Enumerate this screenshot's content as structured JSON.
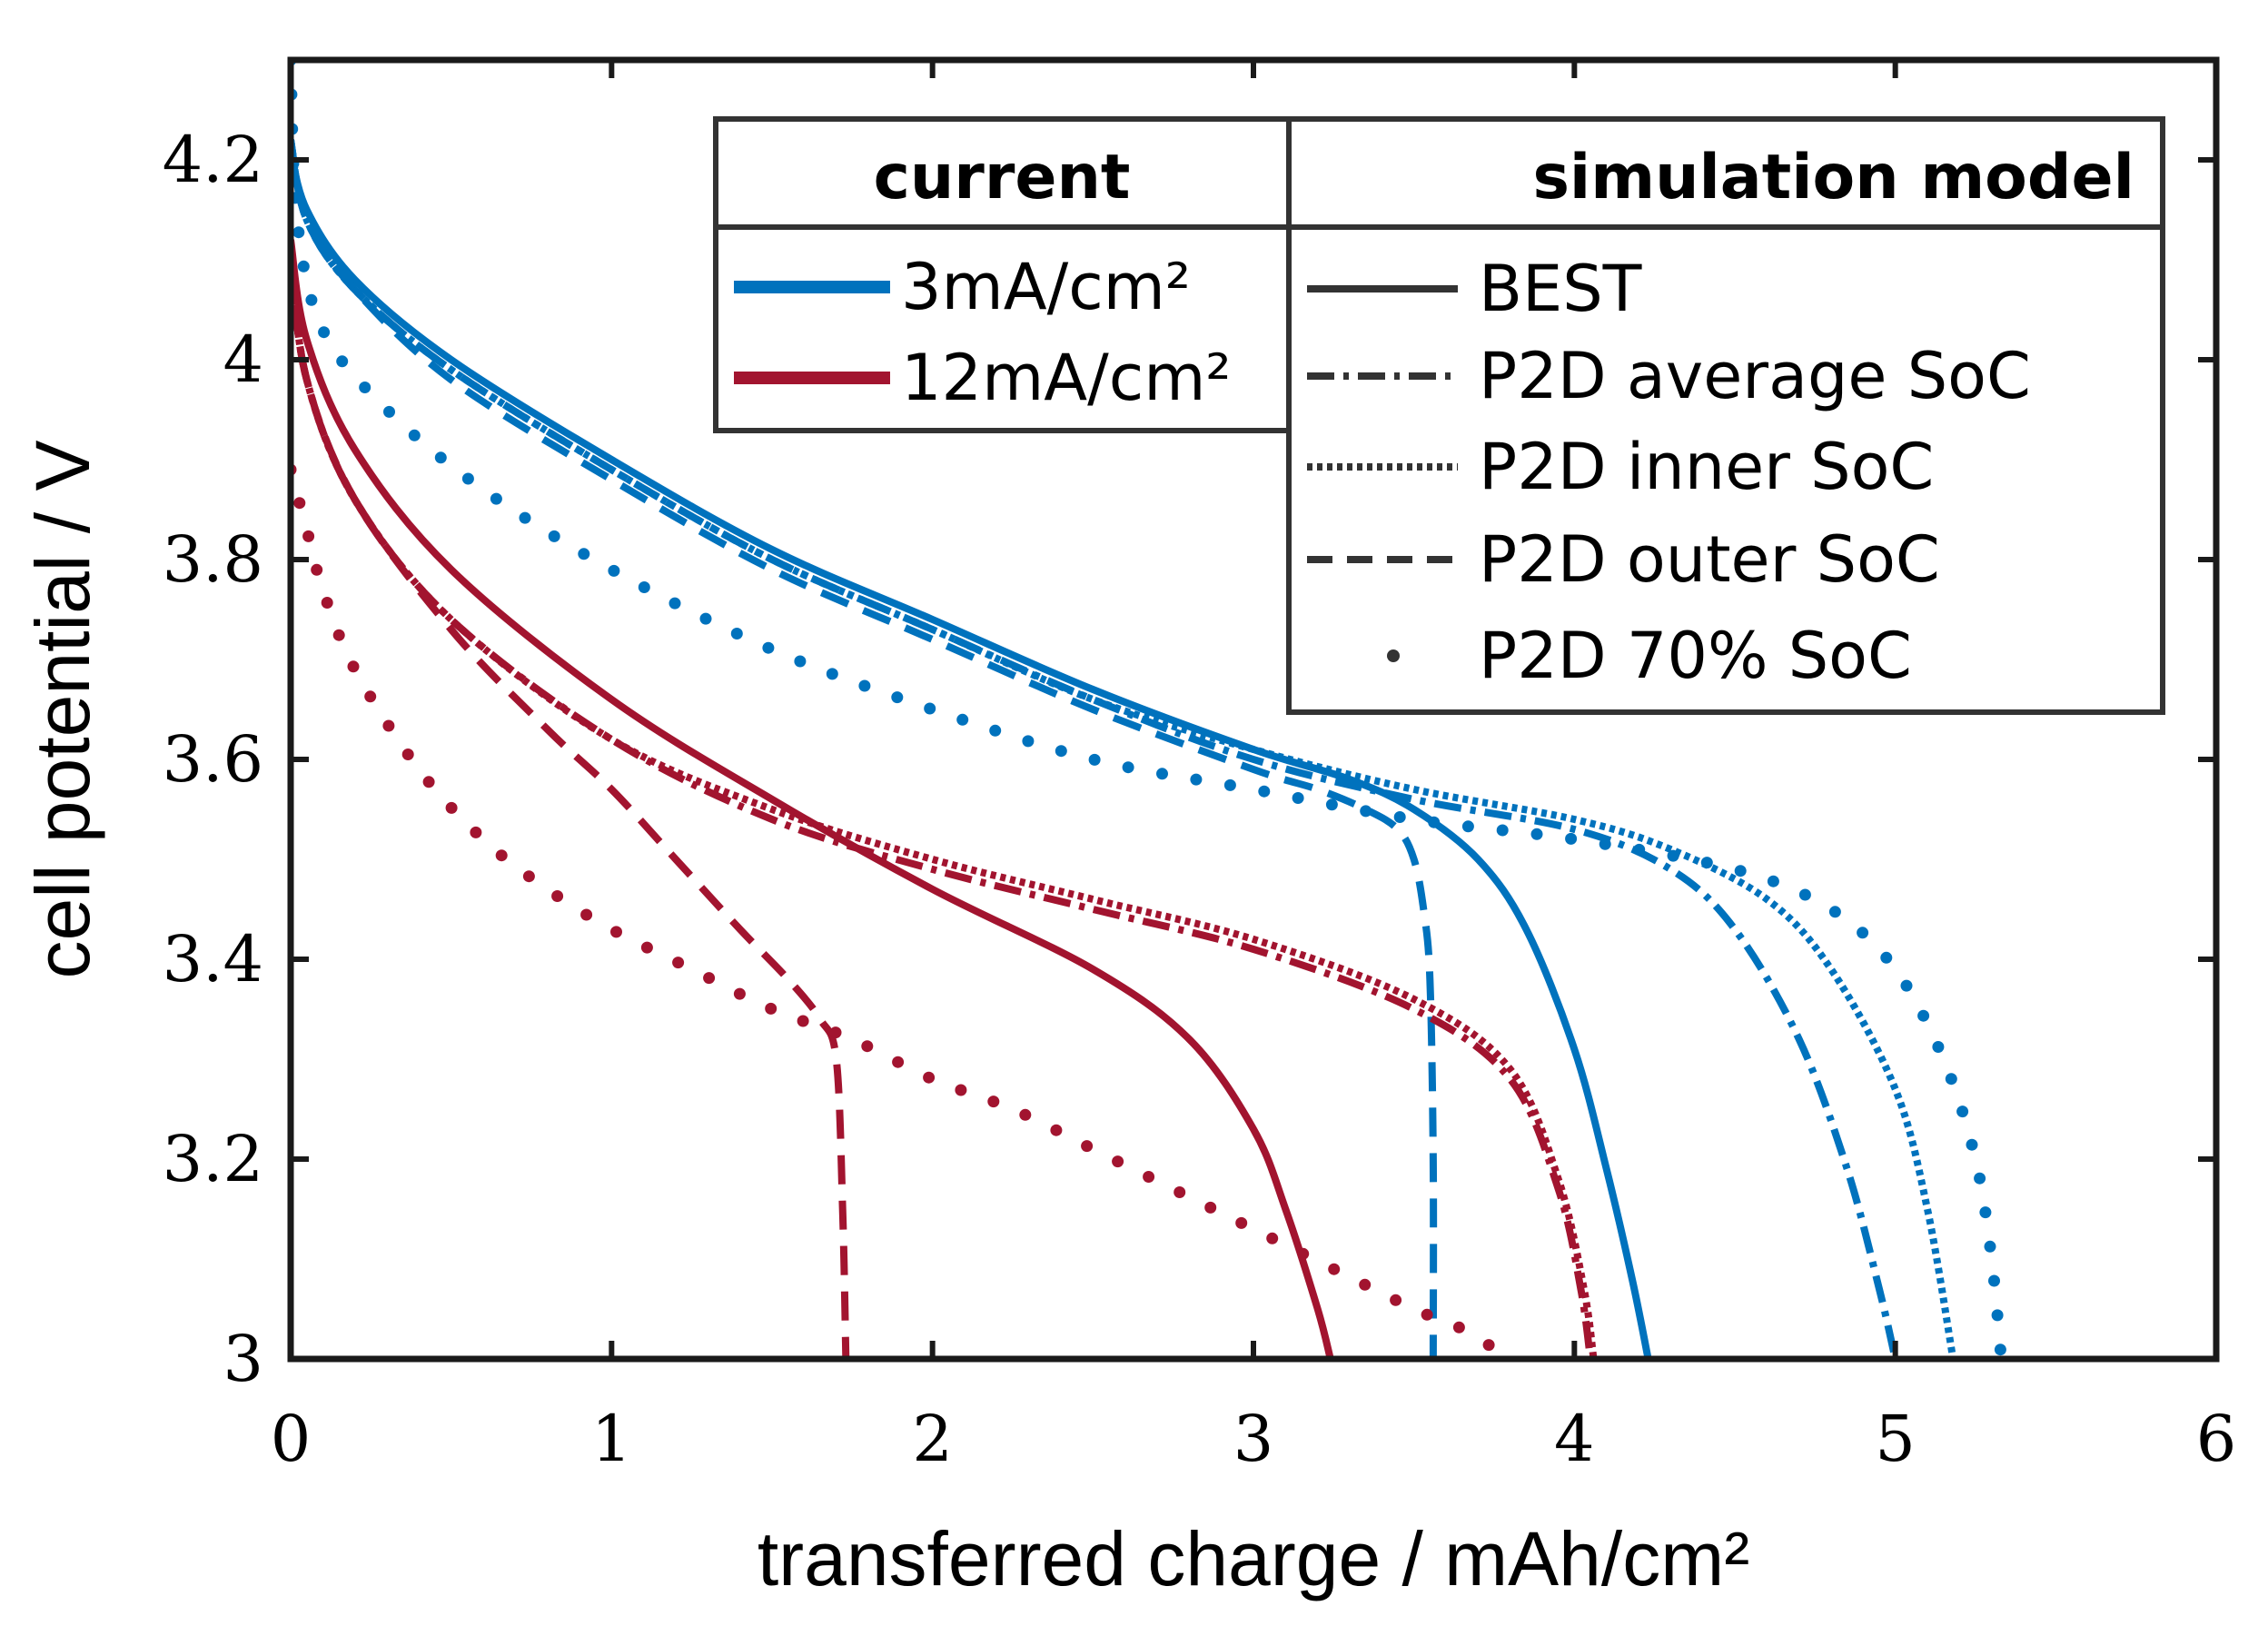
{
  "chart_data": {
    "type": "line",
    "title": "",
    "xlabel": "transferred charge / mAh/cm²",
    "ylabel": "cell potential / V",
    "xlim": [
      0,
      6
    ],
    "ylim": [
      3,
      4.3
    ],
    "x_ticks": [
      "0",
      "1",
      "2",
      "3",
      "4",
      "5",
      "6"
    ],
    "y_ticks": [
      "3",
      "3.2",
      "3.4",
      "3.6",
      "3.8",
      "4",
      "4.2"
    ],
    "grid": false,
    "colors": {
      "3mA": "#0072bd",
      "12mA": "#a2142f",
      "legend_line": "#333333"
    },
    "legend": {
      "placement": "top-right",
      "current_title": "current",
      "model_title": "simulation model",
      "current_entries": [
        {
          "label": "3mA/cm²",
          "color": "#0072bd"
        },
        {
          "label": "12mA/cm²",
          "color": "#a2142f"
        }
      ],
      "model_entries": [
        {
          "label": "BEST",
          "style": "solid"
        },
        {
          "label": "P2D average SoC",
          "style": "dashdot"
        },
        {
          "label": "P2D inner SoC",
          "style": "dotted"
        },
        {
          "label": "P2D outer SoC",
          "style": "dashed"
        },
        {
          "label": "P2D 70% SoC",
          "style": "sparse-dots"
        }
      ]
    },
    "series": [
      {
        "name": "BEST 3mA/cm²",
        "current": "3mA",
        "style": "solid",
        "x": [
          0,
          0.05,
          0.2,
          0.5,
          1.0,
          1.5,
          2.0,
          2.5,
          3.0,
          3.3,
          3.5,
          3.7,
          3.85,
          4.0,
          4.1,
          4.18,
          4.23
        ],
        "y": [
          4.21,
          4.15,
          4.08,
          4.0,
          3.9,
          3.81,
          3.74,
          3.67,
          3.61,
          3.58,
          3.55,
          3.5,
          3.43,
          3.31,
          3.19,
          3.08,
          3.0
        ]
      },
      {
        "name": "P2D average SoC 3mA/cm²",
        "current": "3mA",
        "style": "dashdot",
        "x": [
          0,
          0.05,
          0.2,
          0.5,
          1.0,
          1.5,
          2.0,
          2.5,
          3.0,
          3.5,
          4.0,
          4.3,
          4.5,
          4.7,
          4.85,
          4.95,
          5.0
        ],
        "y": [
          4.22,
          4.14,
          4.07,
          3.99,
          3.89,
          3.8,
          3.73,
          3.66,
          3.6,
          3.56,
          3.53,
          3.49,
          3.43,
          3.32,
          3.19,
          3.07,
          3.0
        ]
      },
      {
        "name": "P2D inner SoC 3mA/cm²",
        "current": "3mA",
        "style": "dotted",
        "x": [
          0,
          0.05,
          0.2,
          0.5,
          1.0,
          1.5,
          2.0,
          2.5,
          3.0,
          3.5,
          4.0,
          4.3,
          4.6,
          4.8,
          5.0,
          5.1,
          5.18
        ],
        "y": [
          4.22,
          4.14,
          4.07,
          3.99,
          3.89,
          3.8,
          3.73,
          3.66,
          3.61,
          3.57,
          3.54,
          3.51,
          3.46,
          3.39,
          3.27,
          3.15,
          3.0
        ]
      },
      {
        "name": "P2D outer SoC 3mA/cm²",
        "current": "3mA",
        "style": "dashed",
        "x": [
          0,
          0.05,
          0.2,
          0.5,
          1.0,
          1.5,
          2.0,
          2.5,
          3.0,
          3.2,
          3.35,
          3.45,
          3.5,
          3.53,
          3.55,
          3.56,
          3.56
        ],
        "y": [
          4.22,
          4.14,
          4.07,
          3.98,
          3.88,
          3.79,
          3.72,
          3.65,
          3.59,
          3.57,
          3.55,
          3.53,
          3.5,
          3.45,
          3.38,
          3.2,
          3.0
        ]
      },
      {
        "name": "P2D 70% SoC 3mA/cm²",
        "current": "3mA",
        "style": "sparse-dots",
        "x": [
          0,
          0.02,
          0.1,
          0.3,
          0.6,
          1.0,
          1.5,
          2.0,
          2.5,
          3.0,
          3.5,
          4.0,
          4.5,
          4.8,
          5.0,
          5.15,
          5.25,
          5.3,
          5.33
        ],
        "y": [
          4.3,
          4.14,
          4.03,
          3.95,
          3.87,
          3.79,
          3.71,
          3.65,
          3.6,
          3.57,
          3.54,
          3.52,
          3.49,
          3.45,
          3.39,
          3.3,
          3.2,
          3.1,
          3.0
        ]
      },
      {
        "name": "BEST 12mA/cm²",
        "current": "12mA",
        "style": "solid",
        "x": [
          0,
          0.05,
          0.2,
          0.5,
          1.0,
          1.5,
          2.0,
          2.5,
          2.8,
          3.0,
          3.1,
          3.2,
          3.24
        ],
        "y": [
          4.12,
          4.02,
          3.91,
          3.79,
          3.66,
          3.56,
          3.47,
          3.39,
          3.32,
          3.23,
          3.15,
          3.05,
          3.0
        ]
      },
      {
        "name": "P2D average SoC 12mA/cm²",
        "current": "12mA",
        "style": "dashdot",
        "x": [
          0,
          0.05,
          0.2,
          0.5,
          1.0,
          1.5,
          2.0,
          2.5,
          3.0,
          3.5,
          3.8,
          3.95,
          4.02,
          4.05
        ],
        "y": [
          4.1,
          3.98,
          3.86,
          3.74,
          3.62,
          3.54,
          3.49,
          3.45,
          3.41,
          3.35,
          3.28,
          3.17,
          3.07,
          3.0
        ]
      },
      {
        "name": "P2D inner SoC 12mA/cm²",
        "current": "12mA",
        "style": "dotted",
        "x": [
          0,
          0.05,
          0.2,
          0.5,
          1.0,
          1.5,
          2.0,
          2.5,
          3.0,
          3.5,
          3.8,
          3.95,
          4.03,
          4.06
        ],
        "y": [
          4.1,
          3.98,
          3.86,
          3.74,
          3.62,
          3.55,
          3.5,
          3.46,
          3.42,
          3.36,
          3.29,
          3.18,
          3.07,
          3.0
        ]
      },
      {
        "name": "P2D outer SoC 12mA/cm²",
        "current": "12mA",
        "style": "dashed",
        "x": [
          0,
          0.05,
          0.2,
          0.5,
          0.8,
          1.0,
          1.2,
          1.4,
          1.55,
          1.65,
          1.7,
          1.72,
          1.73
        ],
        "y": [
          4.1,
          3.98,
          3.86,
          3.73,
          3.63,
          3.57,
          3.5,
          3.43,
          3.38,
          3.34,
          3.3,
          3.15,
          3.0
        ]
      },
      {
        "name": "P2D 70% SoC 12mA/cm²",
        "current": "12mA",
        "style": "sparse-dots",
        "x": [
          0,
          0.05,
          0.1,
          0.2,
          0.4,
          0.6,
          0.8,
          1.0,
          1.25,
          1.5,
          1.75,
          2.0,
          2.25,
          2.5,
          2.75,
          3.0,
          3.25,
          3.5,
          3.65,
          3.8
        ],
        "y": [
          3.89,
          3.83,
          3.77,
          3.69,
          3.59,
          3.52,
          3.47,
          3.43,
          3.39,
          3.35,
          3.32,
          3.28,
          3.25,
          3.21,
          3.17,
          3.13,
          3.09,
          3.05,
          3.03,
          3.0
        ]
      }
    ]
  }
}
